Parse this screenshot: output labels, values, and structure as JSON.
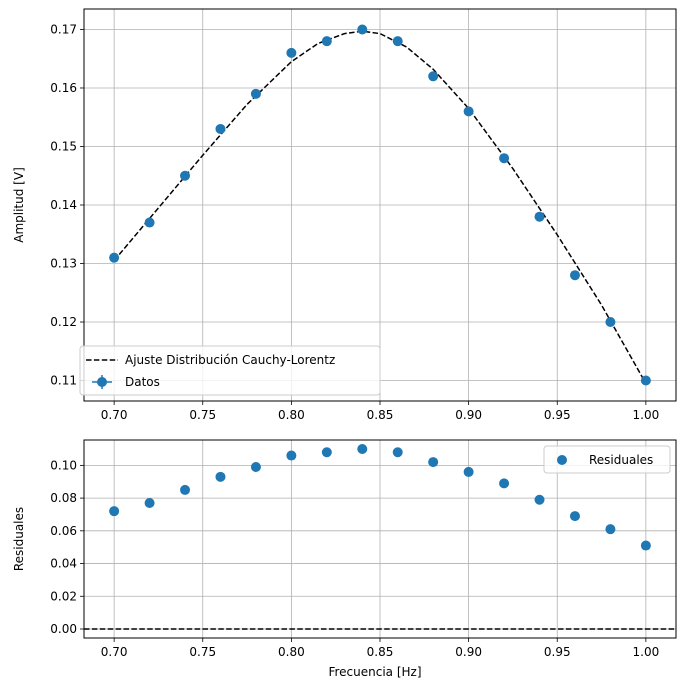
{
  "chart_data": [
    {
      "type": "scatter",
      "id": "top",
      "ylabel": "Amplitud [V]",
      "xlabel": "",
      "xlim": [
        0.683,
        1.017
      ],
      "ylim": [
        0.1065,
        0.1735
      ],
      "xticks": [
        0.7,
        0.75,
        0.8,
        0.85,
        0.9,
        0.95,
        1.0
      ],
      "xtick_labels": [
        "0.70",
        "0.75",
        "0.80",
        "0.85",
        "0.90",
        "0.95",
        "1.00"
      ],
      "yticks": [
        0.11,
        0.12,
        0.13,
        0.14,
        0.15,
        0.16,
        0.17
      ],
      "ytick_labels": [
        "0.11",
        "0.12",
        "0.13",
        "0.14",
        "0.15",
        "0.16",
        "0.17"
      ],
      "grid": true,
      "legend_position": "lower-left",
      "series": [
        {
          "name": "Datos",
          "kind": "scatter",
          "color": "#1f77b4",
          "x": [
            0.7,
            0.72,
            0.74,
            0.76,
            0.78,
            0.8,
            0.82,
            0.84,
            0.86,
            0.88,
            0.9,
            0.92,
            0.94,
            0.96,
            0.98,
            1.0
          ],
          "y": [
            0.131,
            0.137,
            0.145,
            0.153,
            0.159,
            0.166,
            0.168,
            0.17,
            0.168,
            0.162,
            0.156,
            0.148,
            0.138,
            0.128,
            0.12,
            0.11
          ]
        },
        {
          "name": "Ajuste Distribución Cauchy-Lorentz",
          "kind": "line",
          "style": "dashed",
          "color": "#000000",
          "x": [
            0.7,
            0.725,
            0.75,
            0.775,
            0.8,
            0.815,
            0.83,
            0.84,
            0.85,
            0.865,
            0.88,
            0.9,
            0.925,
            0.95,
            0.975,
            1.0
          ],
          "y": [
            0.1305,
            0.1395,
            0.1485,
            0.1572,
            0.1645,
            0.1676,
            0.1693,
            0.1697,
            0.1693,
            0.167,
            0.1632,
            0.1565,
            0.1462,
            0.1349,
            0.1229,
            0.1095
          ]
        }
      ]
    },
    {
      "type": "scatter",
      "id": "bottom",
      "ylabel": "Residuales",
      "xlabel": "Frecuencia [Hz]",
      "xlim": [
        0.683,
        1.017
      ],
      "ylim": [
        -0.0055,
        0.1155
      ],
      "xticks": [
        0.7,
        0.75,
        0.8,
        0.85,
        0.9,
        0.95,
        1.0
      ],
      "xtick_labels": [
        "0.70",
        "0.75",
        "0.80",
        "0.85",
        "0.90",
        "0.95",
        "1.00"
      ],
      "yticks": [
        0.0,
        0.02,
        0.04,
        0.06,
        0.08,
        0.1
      ],
      "ytick_labels": [
        "0.00",
        "0.02",
        "0.04",
        "0.06",
        "0.08",
        "0.10"
      ],
      "grid": true,
      "legend_position": "upper-right",
      "hline": {
        "y": 0.0,
        "style": "dashed",
        "color": "#000000"
      },
      "series": [
        {
          "name": "Residuales",
          "kind": "scatter",
          "color": "#1f77b4",
          "x": [
            0.7,
            0.72,
            0.74,
            0.76,
            0.78,
            0.8,
            0.82,
            0.84,
            0.86,
            0.88,
            0.9,
            0.92,
            0.94,
            0.96,
            0.98,
            1.0
          ],
          "y": [
            0.072,
            0.077,
            0.085,
            0.093,
            0.099,
            0.106,
            0.108,
            0.11,
            0.108,
            0.102,
            0.096,
            0.089,
            0.079,
            0.069,
            0.061,
            0.051
          ]
        }
      ]
    }
  ]
}
